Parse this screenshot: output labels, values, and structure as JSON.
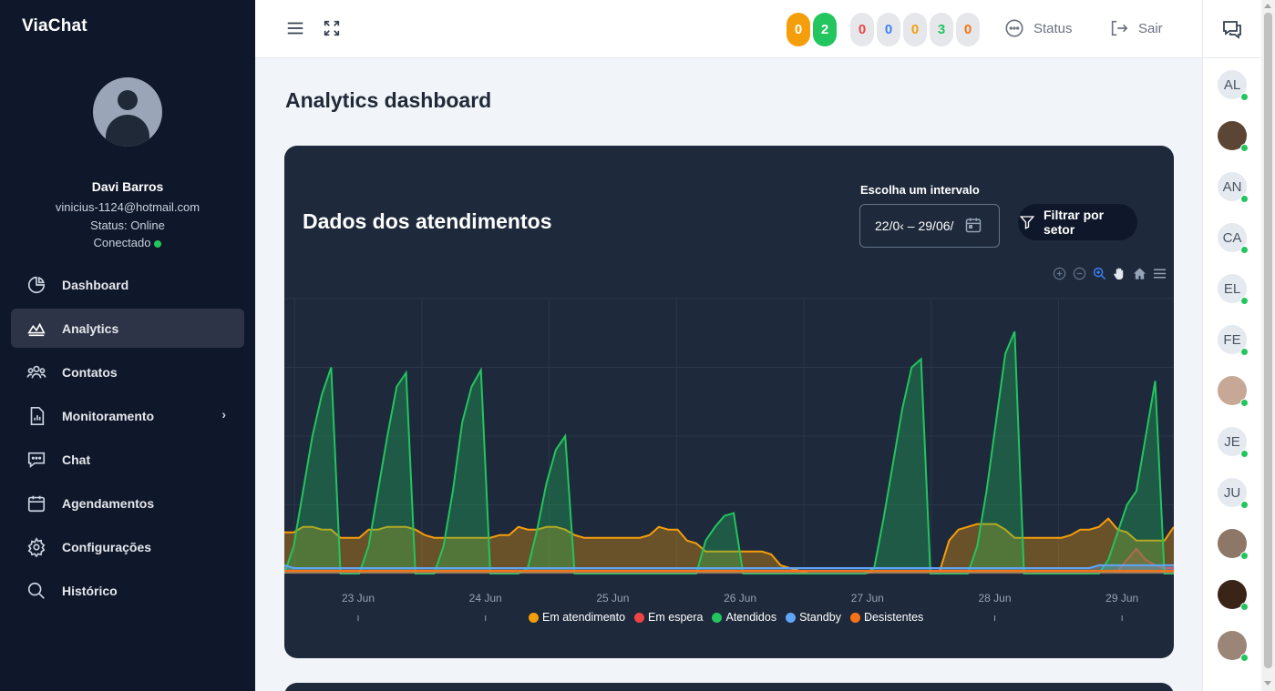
{
  "app": {
    "brand": "ViaChat"
  },
  "user": {
    "name": "Davi Barros",
    "email": "vinicius-1124@hotmail.com",
    "status": "Status: Online",
    "connection": "Conectado"
  },
  "nav": {
    "items": [
      {
        "label": "Dashboard",
        "icon": "pie-chart-icon"
      },
      {
        "label": "Analytics",
        "icon": "area-chart-icon",
        "active": true
      },
      {
        "label": "Contatos",
        "icon": "users-icon"
      },
      {
        "label": "Monitoramento",
        "icon": "report-icon",
        "has_submenu": true
      },
      {
        "label": "Chat",
        "icon": "chat-icon"
      },
      {
        "label": "Agendamentos",
        "icon": "calendar-icon"
      },
      {
        "label": "Configurações",
        "icon": "gear-icon"
      },
      {
        "label": "Histórico",
        "icon": "search-icon"
      }
    ]
  },
  "topbar": {
    "badges": [
      {
        "value": "0",
        "bg": "#f59e0b",
        "color": "#ffffff"
      },
      {
        "value": "2",
        "bg": "#22c55e",
        "color": "#ffffff"
      },
      {
        "value": "0",
        "bg": "#e5e7eb",
        "color": "#ef4444"
      },
      {
        "value": "0",
        "bg": "#e5e7eb",
        "color": "#3b82f6"
      },
      {
        "value": "0",
        "bg": "#e5e7eb",
        "color": "#f59e0b"
      },
      {
        "value": "3",
        "bg": "#e5e7eb",
        "color": "#22c55e"
      },
      {
        "value": "0",
        "bg": "#e5e7eb",
        "color": "#f97316"
      }
    ],
    "status_label": "Status",
    "logout_label": "Sair"
  },
  "page": {
    "title": "Analytics dashboard"
  },
  "card": {
    "title": "Dados dos atendimentos",
    "range_label": "Escolha um intervalo",
    "range_value": "22/0‹ – 29/06/",
    "filter_label": "Filtrar por setor"
  },
  "rail": {
    "contacts": [
      {
        "initials": "AL",
        "photo": false
      },
      {
        "initials": "",
        "photo": true,
        "bg": "#5b4636"
      },
      {
        "initials": "AN",
        "photo": false
      },
      {
        "initials": "CA",
        "photo": false
      },
      {
        "initials": "EL",
        "photo": false
      },
      {
        "initials": "FE",
        "photo": false
      },
      {
        "initials": "",
        "photo": true,
        "bg": "#c7a896"
      },
      {
        "initials": "JE",
        "photo": false
      },
      {
        "initials": "JU",
        "photo": false
      },
      {
        "initials": "",
        "photo": true,
        "bg": "#8d7766"
      },
      {
        "initials": "",
        "photo": true,
        "bg": "#3a2418"
      },
      {
        "initials": "",
        "photo": true,
        "bg": "#9a8577"
      }
    ]
  },
  "chart_data": {
    "type": "area",
    "x_ticks": [
      "23 Jun",
      "24 Jun",
      "25 Jun",
      "26 Jun",
      "27 Jun",
      "28 Jun",
      "29 Jun"
    ],
    "series": [
      {
        "name": "Em atendimento",
        "color": "#f59e0b",
        "values": [
          15,
          15,
          17,
          17,
          16,
          16,
          13,
          13,
          13,
          16,
          16,
          17,
          17,
          17,
          16,
          14,
          13,
          13,
          13,
          13,
          13,
          13,
          13,
          14,
          14,
          17,
          16,
          16,
          17,
          17,
          16,
          14,
          13,
          13,
          13,
          13,
          13,
          13,
          13,
          14,
          17,
          16,
          16,
          12,
          11,
          8,
          8,
          8,
          8,
          8,
          8,
          8,
          7,
          3,
          2,
          1,
          0,
          0,
          0,
          0,
          0,
          0,
          0,
          1,
          1,
          1,
          1,
          1,
          1,
          1,
          1,
          12,
          16,
          17,
          18,
          18,
          18,
          16,
          13,
          13,
          13,
          13,
          13,
          13,
          14,
          16,
          16,
          17,
          20,
          16,
          15,
          12,
          12,
          12,
          12,
          17
        ]
      },
      {
        "name": "Em espera",
        "color": "#ef4444",
        "values": [
          1,
          1,
          1,
          1,
          1,
          1,
          1,
          1,
          1,
          1,
          1,
          1,
          1,
          1,
          1,
          1,
          1,
          1,
          1,
          1,
          1,
          1,
          1,
          1,
          1,
          1,
          1,
          1,
          1,
          1,
          1,
          1,
          1,
          1,
          1,
          1,
          1,
          1,
          1,
          1,
          1,
          1,
          1,
          1,
          1,
          1,
          1,
          1,
          1,
          1,
          1,
          1,
          1,
          1,
          1,
          1,
          1,
          1,
          1,
          1,
          1,
          1,
          1,
          1,
          1,
          1,
          1,
          1,
          1,
          1,
          1,
          1,
          1,
          1,
          1,
          1,
          1,
          1,
          1,
          1,
          1,
          1,
          1,
          1,
          1,
          1,
          1,
          1,
          1,
          1,
          5,
          9,
          5,
          3,
          2,
          2
        ]
      },
      {
        "name": "Atendidos",
        "color": "#22c55e",
        "values": [
          0,
          10,
          30,
          50,
          65,
          75,
          0,
          0,
          0,
          10,
          30,
          50,
          68,
          73,
          0,
          0,
          0,
          10,
          30,
          55,
          68,
          74,
          0,
          0,
          0,
          0,
          2,
          16,
          33,
          45,
          50,
          0,
          0,
          0,
          0,
          0,
          0,
          0,
          0,
          0,
          0,
          0,
          0,
          0,
          0,
          12,
          17,
          21,
          22,
          0,
          0,
          0,
          0,
          0,
          0,
          0,
          0,
          0,
          0,
          0,
          0,
          0,
          0,
          2,
          20,
          40,
          60,
          75,
          78,
          0,
          0,
          0,
          0,
          0,
          10,
          30,
          55,
          80,
          88,
          0,
          0,
          0,
          0,
          0,
          0,
          0,
          0,
          0,
          5,
          15,
          25,
          30,
          50,
          70,
          0,
          0
        ]
      },
      {
        "name": "Standby",
        "color": "#60a5fa",
        "values": [
          3,
          2,
          2,
          2,
          2,
          2,
          2,
          2,
          2,
          2,
          2,
          2,
          2,
          2,
          2,
          2,
          2,
          2,
          2,
          2,
          2,
          2,
          2,
          2,
          2,
          2,
          2,
          2,
          2,
          2,
          2,
          2,
          2,
          2,
          2,
          2,
          2,
          2,
          2,
          2,
          2,
          2,
          2,
          2,
          2,
          2,
          2,
          2,
          2,
          2,
          2,
          2,
          2,
          2,
          2,
          2,
          2,
          2,
          2,
          2,
          2,
          2,
          2,
          2,
          2,
          2,
          2,
          2,
          2,
          2,
          2,
          2,
          2,
          2,
          2,
          2,
          2,
          2,
          2,
          2,
          2,
          2,
          2,
          2,
          2,
          2,
          2,
          3,
          3,
          3,
          3,
          3,
          3,
          3,
          3,
          3
        ]
      },
      {
        "name": "Desistentes",
        "color": "#f97316",
        "values": [
          1,
          1,
          1,
          1,
          1,
          1,
          1,
          1,
          1,
          1,
          1,
          1,
          1,
          1,
          1,
          1,
          1,
          1,
          1,
          1,
          1,
          1,
          1,
          1,
          1,
          1,
          1,
          1,
          1,
          1,
          1,
          1,
          1,
          1,
          1,
          1,
          1,
          1,
          1,
          1,
          1,
          1,
          1,
          1,
          1,
          1,
          1,
          1,
          1,
          1,
          1,
          1,
          1,
          1,
          1,
          1,
          1,
          1,
          1,
          1,
          1,
          1,
          1,
          1,
          1,
          1,
          1,
          1,
          1,
          1,
          1,
          1,
          1,
          1,
          1,
          1,
          1,
          1,
          1,
          1,
          1,
          1,
          1,
          1,
          1,
          1,
          1,
          1,
          1,
          1,
          1,
          1,
          1,
          1,
          1,
          1
        ]
      }
    ],
    "ylim": [
      0,
      100
    ],
    "grid": true,
    "legend": "bottom"
  }
}
